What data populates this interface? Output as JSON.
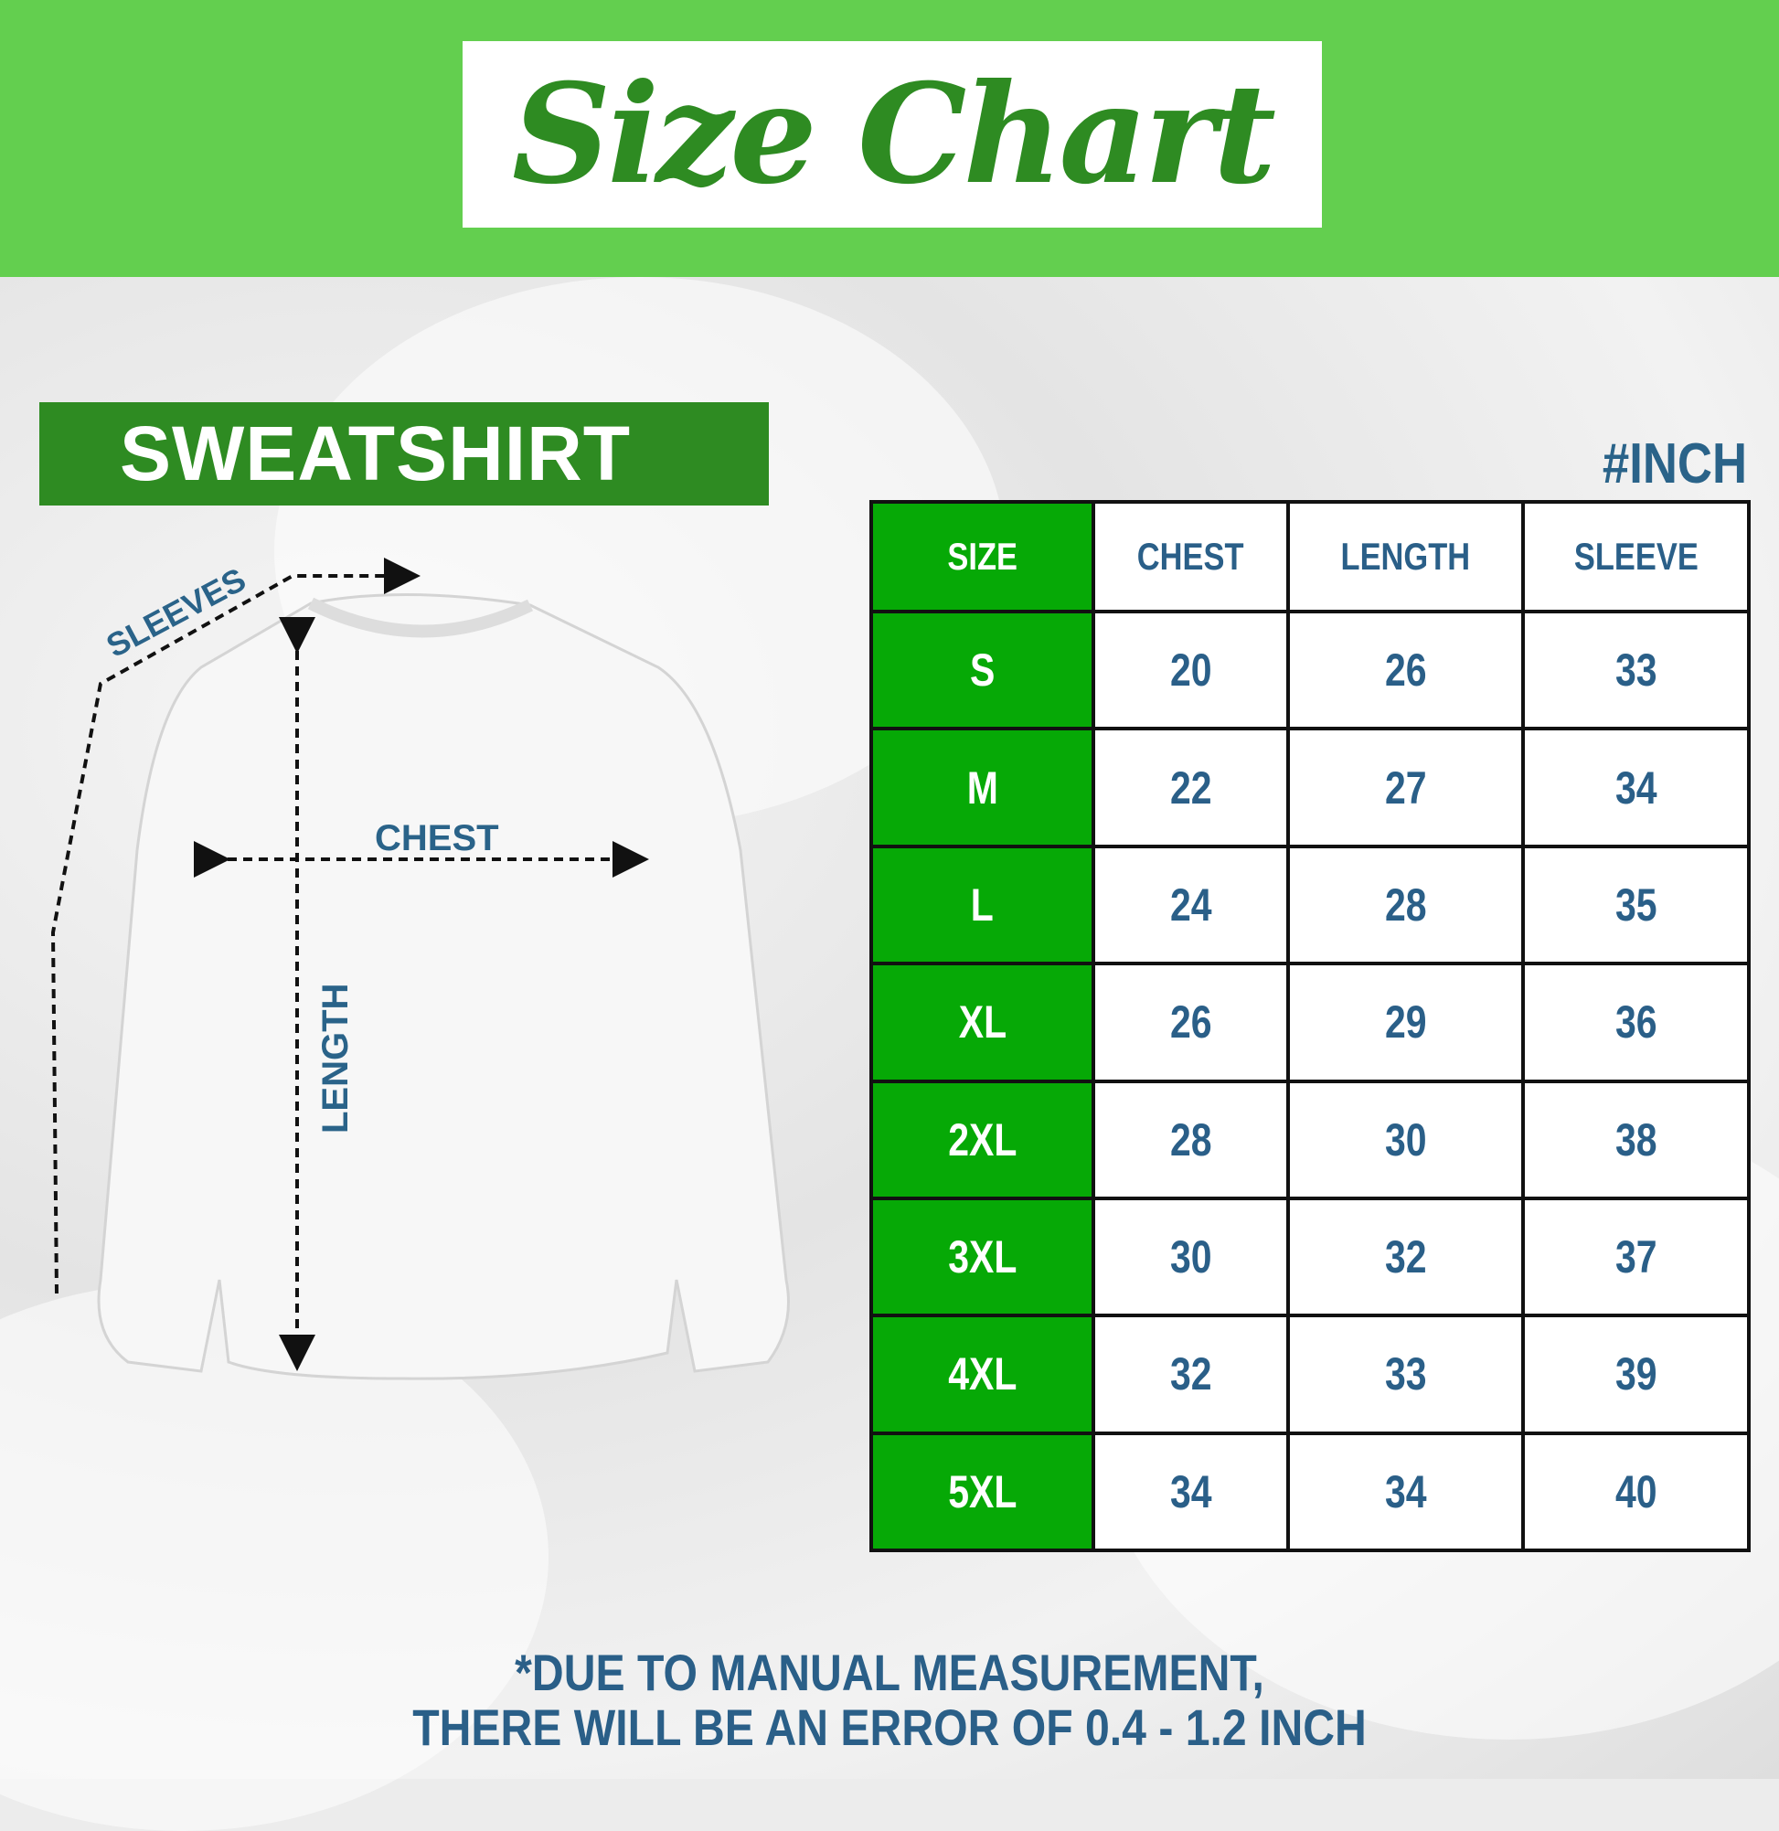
{
  "title": "Size Chart",
  "product": "SWEATSHIRT",
  "unit": "#INCH",
  "diagram_labels": {
    "sleeves": "SLEEVES",
    "chest": "CHEST",
    "length": "LENGTH"
  },
  "table": {
    "headers": [
      "SIZE",
      "CHEST",
      "LENGTH",
      "SLEEVE"
    ],
    "rows": [
      [
        "S",
        "20",
        "26",
        "33"
      ],
      [
        "M",
        "22",
        "27",
        "34"
      ],
      [
        "L",
        "24",
        "28",
        "35"
      ],
      [
        "XL",
        "26",
        "29",
        "36"
      ],
      [
        "2XL",
        "28",
        "30",
        "38"
      ],
      [
        "3XL",
        "30",
        "32",
        "37"
      ],
      [
        "4XL",
        "32",
        "33",
        "39"
      ],
      [
        "5XL",
        "34",
        "34",
        "40"
      ]
    ]
  },
  "footer": {
    "line1": "*DUE TO MANUAL MEASUREMENT,",
    "line2": "THERE WILL BE AN ERROR OF 0.4 - 1.2 INCH"
  },
  "colors": {
    "header_green": "#63cf4f",
    "dark_green": "#2e8b22",
    "size_green": "#06a906",
    "text_blue": "#2a5f88"
  }
}
